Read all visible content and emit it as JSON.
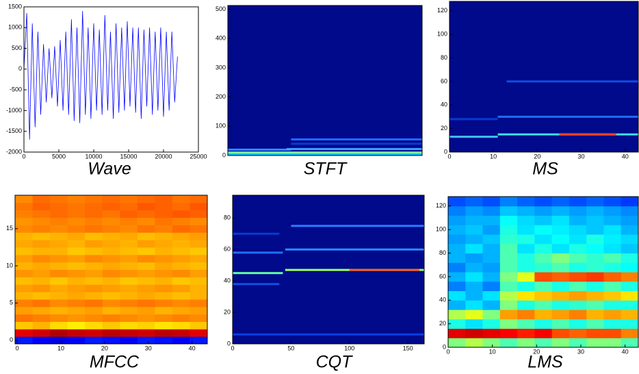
{
  "chart_data": [
    {
      "type": "line",
      "title": "Wave",
      "color": "#0000ff",
      "x": [
        0,
        400,
        800,
        1200,
        1600,
        2000,
        2400,
        2800,
        3200,
        3600,
        4000,
        4400,
        4800,
        5200,
        5600,
        6000,
        6400,
        6800,
        7200,
        7600,
        8000,
        8400,
        8800,
        9200,
        9600,
        10000,
        10400,
        10800,
        11200,
        11600,
        12000,
        12400,
        12800,
        13200,
        13600,
        14000,
        14400,
        14800,
        15200,
        15600,
        16000,
        16400,
        16800,
        17200,
        17600,
        18000,
        18400,
        18800,
        19200,
        19600,
        20000,
        20400,
        20800,
        21200,
        21600,
        22000
      ],
      "values": [
        0,
        1350,
        -1700,
        1100,
        -1400,
        900,
        -1100,
        600,
        -800,
        500,
        -700,
        550,
        -900,
        700,
        -1000,
        900,
        -1100,
        1200,
        -1250,
        1000,
        -1300,
        1400,
        -1100,
        1000,
        -1200,
        1100,
        -1000,
        950,
        -1100,
        1300,
        -1000,
        900,
        -1200,
        1100,
        -1050,
        1000,
        -1000,
        1150,
        -900,
        1000,
        -1050,
        1000,
        -1200,
        950,
        -900,
        1000,
        -1100,
        900,
        -1000,
        1000,
        -1150,
        900,
        -1000,
        900,
        -800,
        300
      ],
      "xlim": [
        0,
        25000
      ],
      "xticks": [
        0,
        5000,
        10000,
        15000,
        20000,
        25000
      ],
      "ylim": [
        -2000,
        1500
      ],
      "yticks": [
        -2000,
        -1500,
        -1000,
        -500,
        0,
        500,
        1000,
        1500
      ]
    },
    {
      "type": "spectrogram",
      "title": "STFT",
      "background": "#000a8a",
      "xlim": [
        0,
        43
      ],
      "ylim": [
        0,
        513
      ],
      "yticks": [
        0,
        100,
        200,
        300,
        400,
        500
      ],
      "bands": [
        {
          "y": 3,
          "x": [
            0,
            43
          ],
          "color": "#00c8ff"
        },
        {
          "y": 10,
          "x": [
            0,
            43
          ],
          "color": "#7fffa0"
        },
        {
          "y": 20,
          "x": [
            0,
            14
          ],
          "color": "#2a8cff"
        },
        {
          "y": 22,
          "x": [
            13,
            43
          ],
          "color": "#3fa0ff"
        },
        {
          "y": 40,
          "x": [
            14,
            43
          ],
          "color": "#0a3ad0"
        },
        {
          "y": 55,
          "x": [
            14,
            43
          ],
          "color": "#1e6cff"
        }
      ]
    },
    {
      "type": "spectrogram",
      "title": "MS",
      "background": "#000a8a",
      "xlim": [
        0,
        43
      ],
      "xticks": [
        0,
        10,
        20,
        30,
        40
      ],
      "ylim": [
        0,
        128
      ],
      "yticks": [
        0,
        20,
        40,
        60,
        80,
        100,
        120
      ],
      "bands": [
        {
          "y": 13,
          "x": [
            0,
            11
          ],
          "color": "#40c0ff"
        },
        {
          "y": 15,
          "x": [
            11,
            43
          ],
          "color": "#40e0e0"
        },
        {
          "y": 15,
          "x": [
            25,
            38
          ],
          "color": "#ff4020"
        },
        {
          "y": 28,
          "x": [
            0,
            11
          ],
          "color": "#0a3ad0"
        },
        {
          "y": 30,
          "x": [
            11,
            43
          ],
          "color": "#1e6cff"
        },
        {
          "y": 60,
          "x": [
            13,
            43
          ],
          "color": "#104ce0"
        }
      ]
    },
    {
      "type": "heatmap",
      "title": "MFCC",
      "zlim": [
        0,
        1
      ],
      "xlim": [
        -0.5,
        43.5
      ],
      "xticks": [
        0,
        10,
        20,
        30,
        40
      ],
      "ylim": [
        -0.5,
        19.5
      ],
      "yticks": [
        0,
        5,
        10,
        15
      ],
      "z": [
        [
          0.15,
          0.12,
          0.1,
          0.12,
          0.15,
          0.14,
          0.12,
          0.15,
          0.14,
          0.12,
          0.15
        ],
        [
          0.9,
          0.92,
          0.95,
          0.93,
          0.92,
          0.94,
          0.93,
          0.92,
          0.94,
          0.93,
          0.9
        ],
        [
          0.68,
          0.7,
          0.66,
          0.64,
          0.66,
          0.68,
          0.66,
          0.67,
          0.65,
          0.66,
          0.68
        ],
        [
          0.76,
          0.75,
          0.74,
          0.73,
          0.74,
          0.75,
          0.74,
          0.73,
          0.74,
          0.75,
          0.74
        ],
        [
          0.72,
          0.71,
          0.7,
          0.71,
          0.72,
          0.7,
          0.71,
          0.72,
          0.7,
          0.71,
          0.72
        ],
        [
          0.75,
          0.76,
          0.74,
          0.75,
          0.76,
          0.74,
          0.75,
          0.76,
          0.75,
          0.74,
          0.75
        ],
        [
          0.7,
          0.69,
          0.7,
          0.71,
          0.7,
          0.69,
          0.7,
          0.71,
          0.7,
          0.69,
          0.7
        ],
        [
          0.72,
          0.73,
          0.71,
          0.72,
          0.73,
          0.72,
          0.71,
          0.72,
          0.73,
          0.72,
          0.7
        ],
        [
          0.69,
          0.7,
          0.68,
          0.7,
          0.69,
          0.7,
          0.68,
          0.69,
          0.7,
          0.68,
          0.69
        ],
        [
          0.73,
          0.72,
          0.74,
          0.73,
          0.72,
          0.74,
          0.73,
          0.72,
          0.73,
          0.74,
          0.72
        ],
        [
          0.7,
          0.71,
          0.7,
          0.69,
          0.7,
          0.71,
          0.7,
          0.69,
          0.71,
          0.7,
          0.69
        ],
        [
          0.72,
          0.74,
          0.73,
          0.72,
          0.74,
          0.73,
          0.72,
          0.74,
          0.73,
          0.72,
          0.71
        ],
        [
          0.69,
          0.7,
          0.7,
          0.68,
          0.69,
          0.7,
          0.69,
          0.68,
          0.7,
          0.69,
          0.68
        ],
        [
          0.71,
          0.72,
          0.71,
          0.7,
          0.72,
          0.71,
          0.7,
          0.72,
          0.71,
          0.7,
          0.71
        ],
        [
          0.7,
          0.69,
          0.7,
          0.71,
          0.69,
          0.7,
          0.71,
          0.69,
          0.7,
          0.71,
          0.72
        ],
        [
          0.74,
          0.75,
          0.74,
          0.75,
          0.76,
          0.75,
          0.74,
          0.76,
          0.75,
          0.77,
          0.76
        ],
        [
          0.73,
          0.74,
          0.75,
          0.74,
          0.75,
          0.74,
          0.75,
          0.74,
          0.76,
          0.75,
          0.74
        ],
        [
          0.75,
          0.76,
          0.77,
          0.76,
          0.77,
          0.76,
          0.78,
          0.77,
          0.78,
          0.79,
          0.78
        ],
        [
          0.76,
          0.78,
          0.77,
          0.76,
          0.77,
          0.78,
          0.77,
          0.79,
          0.78,
          0.77,
          0.79
        ],
        [
          0.74,
          0.77,
          0.76,
          0.75,
          0.76,
          0.77,
          0.76,
          0.77,
          0.78,
          0.76,
          0.77
        ]
      ]
    },
    {
      "type": "spectrogram",
      "title": "CQT",
      "background": "#000a8a",
      "xlim": [
        0,
        164
      ],
      "xticks": [
        0,
        50,
        100,
        150
      ],
      "ylim": [
        0,
        94.5
      ],
      "yticks": [
        0,
        20,
        40,
        60,
        80
      ],
      "bands": [
        {
          "y": 6,
          "x": [
            0,
            164
          ],
          "color": "#0a40e0"
        },
        {
          "y": 38,
          "x": [
            0,
            40
          ],
          "color": "#1050e0"
        },
        {
          "y": 45,
          "x": [
            0,
            43
          ],
          "color": "#60ffa0"
        },
        {
          "y": 47,
          "x": [
            45,
            164
          ],
          "color": "#a0ff60"
        },
        {
          "y": 47,
          "x": [
            100,
            160
          ],
          "color": "#ff6020"
        },
        {
          "y": 58,
          "x": [
            0,
            43
          ],
          "color": "#2070ff"
        },
        {
          "y": 60,
          "x": [
            45,
            164
          ],
          "color": "#2a8cff"
        },
        {
          "y": 70,
          "x": [
            0,
            40
          ],
          "color": "#0a3ad0"
        },
        {
          "y": 75,
          "x": [
            50,
            164
          ],
          "color": "#2a7cff"
        }
      ]
    },
    {
      "type": "heatmap",
      "title": "LMS",
      "zlim": [
        0,
        1
      ],
      "xlim": [
        0,
        43
      ],
      "xticks": [
        0,
        10,
        20,
        30,
        40
      ],
      "ylim": [
        0,
        128
      ],
      "yticks": [
        0,
        20,
        40,
        60,
        80,
        100,
        120
      ],
      "z": [
        [
          0.5,
          0.55,
          0.5,
          0.45,
          0.5,
          0.45,
          0.5,
          0.45,
          0.5,
          0.5,
          0.45
        ],
        [
          0.9,
          0.92,
          0.9,
          0.88,
          0.85,
          0.88,
          0.8,
          0.78,
          0.8,
          0.8,
          0.75
        ],
        [
          0.4,
          0.35,
          0.4,
          0.5,
          0.45,
          0.4,
          0.45,
          0.4,
          0.45,
          0.4,
          0.4
        ],
        [
          0.55,
          0.6,
          0.5,
          0.72,
          0.75,
          0.7,
          0.72,
          0.75,
          0.7,
          0.72,
          0.7
        ],
        [
          0.3,
          0.35,
          0.3,
          0.5,
          0.4,
          0.45,
          0.4,
          0.42,
          0.45,
          0.4,
          0.4
        ],
        [
          0.35,
          0.3,
          0.35,
          0.55,
          0.65,
          0.68,
          0.7,
          0.72,
          0.7,
          0.68,
          0.65
        ],
        [
          0.25,
          0.3,
          0.25,
          0.45,
          0.4,
          0.45,
          0.4,
          0.45,
          0.4,
          0.45,
          0.4
        ],
        [
          0.3,
          0.35,
          0.3,
          0.5,
          0.6,
          0.8,
          0.78,
          0.8,
          0.82,
          0.78,
          0.75
        ],
        [
          0.25,
          0.3,
          0.28,
          0.45,
          0.4,
          0.42,
          0.45,
          0.4,
          0.42,
          0.4,
          0.38
        ],
        [
          0.3,
          0.28,
          0.3,
          0.45,
          0.4,
          0.45,
          0.5,
          0.45,
          0.42,
          0.45,
          0.4
        ],
        [
          0.3,
          0.35,
          0.3,
          0.45,
          0.35,
          0.4,
          0.35,
          0.4,
          0.38,
          0.35,
          0.32
        ],
        [
          0.28,
          0.3,
          0.32,
          0.42,
          0.4,
          0.35,
          0.38,
          0.35,
          0.4,
          0.36,
          0.34
        ],
        [
          0.3,
          0.32,
          0.28,
          0.4,
          0.35,
          0.38,
          0.36,
          0.34,
          0.32,
          0.35,
          0.3
        ],
        [
          0.28,
          0.3,
          0.3,
          0.38,
          0.34,
          0.32,
          0.35,
          0.3,
          0.32,
          0.3,
          0.28
        ],
        [
          0.25,
          0.28,
          0.26,
          0.32,
          0.3,
          0.28,
          0.3,
          0.28,
          0.3,
          0.28,
          0.26
        ],
        [
          0.2,
          0.22,
          0.2,
          0.25,
          0.22,
          0.2,
          0.22,
          0.2,
          0.22,
          0.2,
          0.18
        ]
      ]
    }
  ]
}
